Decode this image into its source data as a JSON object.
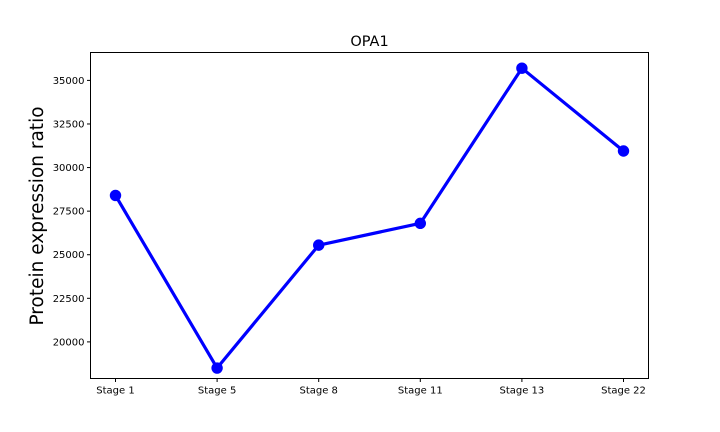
{
  "chart_data": {
    "type": "line",
    "title": "OPA1",
    "xlabel": "",
    "ylabel": "Protein expression ratio",
    "categories": [
      "Stage 1",
      "Stage 5",
      "Stage 8",
      "Stage 11",
      "Stage 13",
      "Stage 22"
    ],
    "series": [
      {
        "values": [
          28400,
          18500,
          25550,
          26800,
          35700,
          30950
        ]
      }
    ],
    "ylim": [
      17900,
      36600
    ],
    "yticks": [
      20000,
      22500,
      25000,
      27500,
      30000,
      32500,
      35000
    ],
    "ytick_labels": [
      "20000",
      "22500",
      "25000",
      "27500",
      "30000",
      "32500",
      "35000"
    ],
    "line_color": "#0000ff",
    "grid": false,
    "legend": "none"
  }
}
